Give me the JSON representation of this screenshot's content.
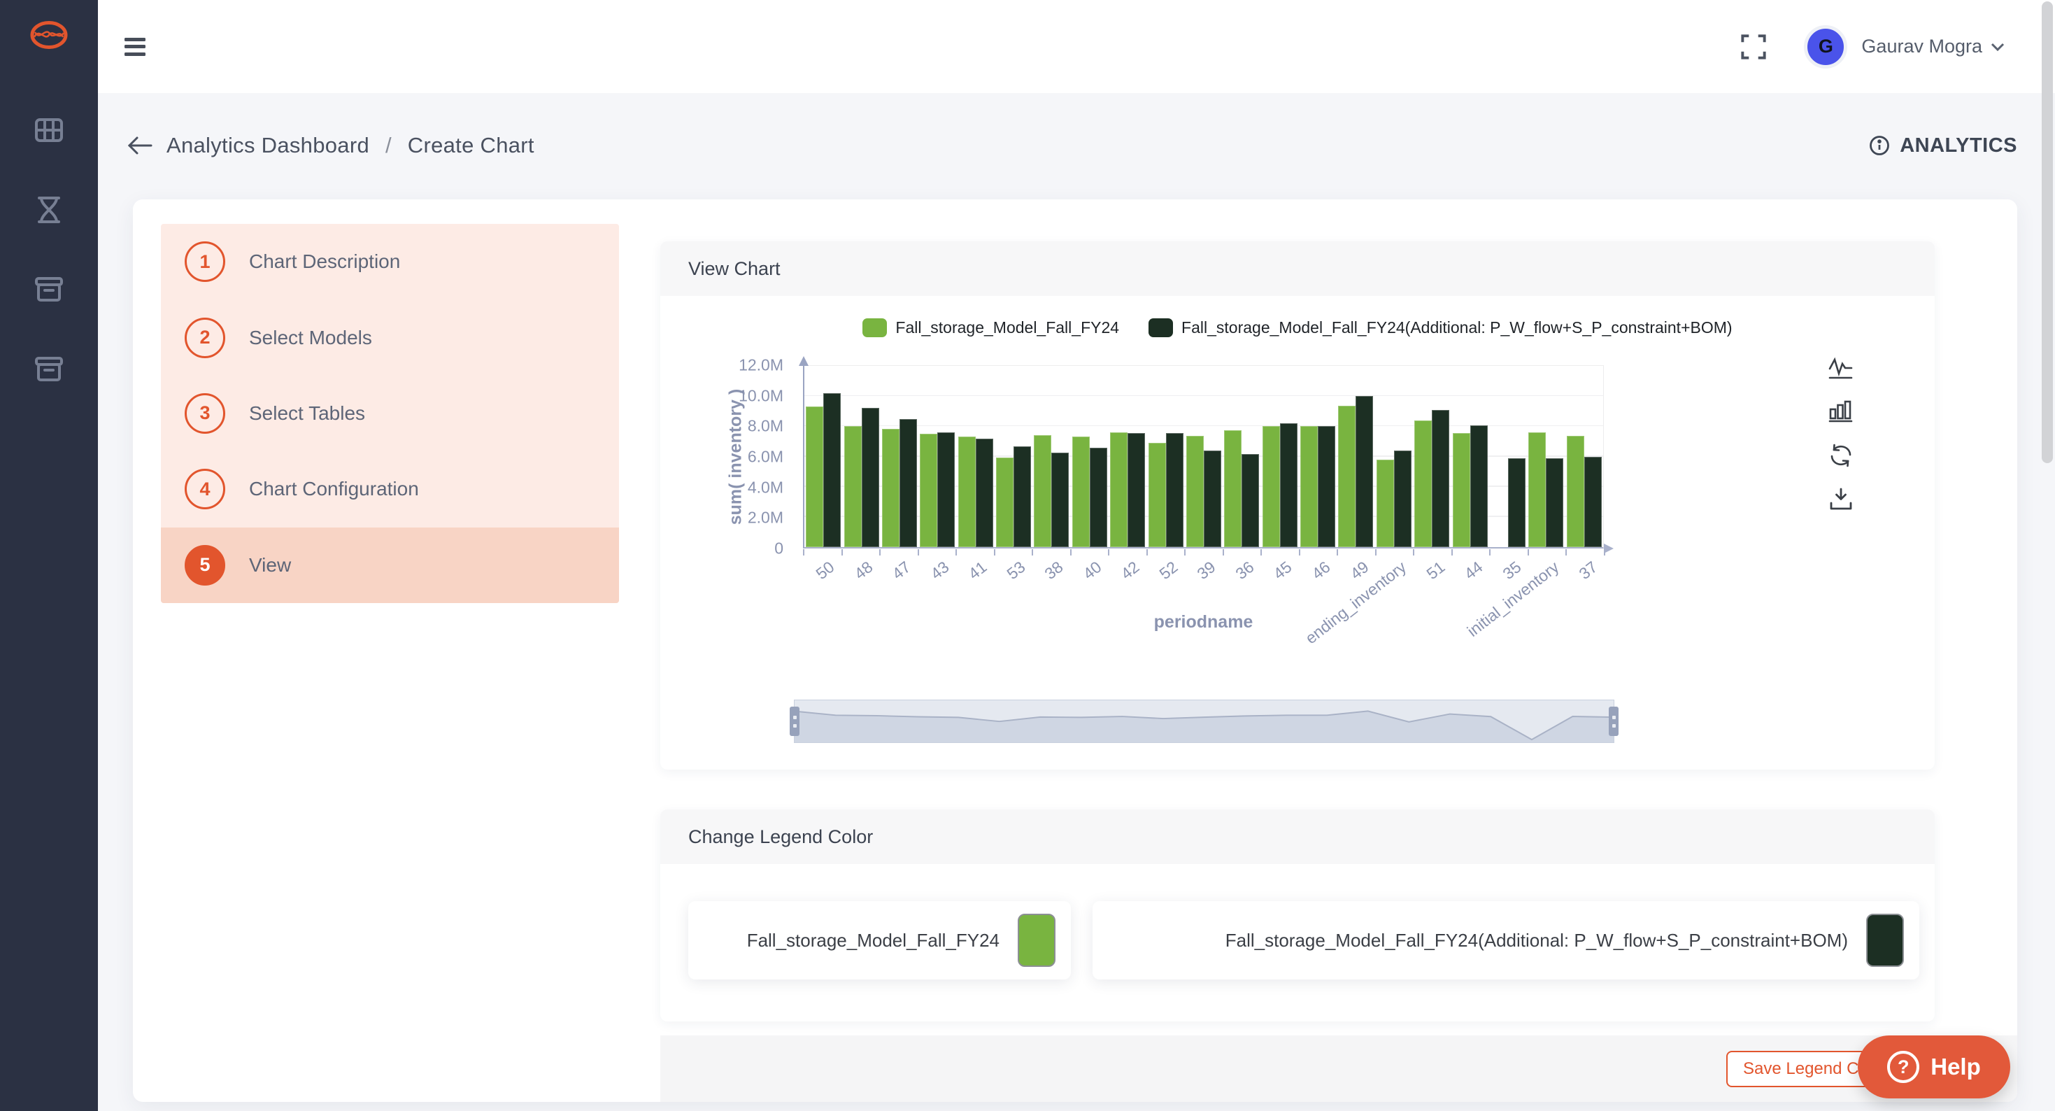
{
  "topbar": {
    "user_name": "Gaurav Mogra",
    "avatar_initial": "G"
  },
  "breadcrumb": {
    "items": [
      "Analytics Dashboard",
      "Create Chart"
    ],
    "separator": "/"
  },
  "header_right": {
    "label": "ANALYTICS"
  },
  "stepper": {
    "steps": [
      {
        "num": "1",
        "label": "Chart Description",
        "active": false
      },
      {
        "num": "2",
        "label": "Select Models",
        "active": false
      },
      {
        "num": "3",
        "label": "Select Tables",
        "active": false
      },
      {
        "num": "4",
        "label": "Chart Configuration",
        "active": false
      },
      {
        "num": "5",
        "label": "View",
        "active": true
      }
    ]
  },
  "panels": {
    "view_chart_title": "View Chart",
    "change_legend_title": "Change Legend Color"
  },
  "chart_data": {
    "type": "bar",
    "title": "",
    "xlabel": "periodname",
    "ylabel": "sum( inventory )",
    "unit": "M",
    "ylim": [
      0,
      12
    ],
    "ytick_values": [
      0,
      2,
      4,
      6,
      8,
      10,
      12
    ],
    "ytick_labels": [
      "0",
      "2.0M",
      "4.0M",
      "6.0M",
      "8.0M",
      "10.0M",
      "12.0M"
    ],
    "grid": true,
    "legend_position": "top",
    "categories": [
      "50",
      "48",
      "47",
      "43",
      "41",
      "53",
      "38",
      "40",
      "42",
      "52",
      "39",
      "36",
      "45",
      "46",
      "49",
      "ending_inventory",
      "51",
      "44",
      "35",
      "initial_inventory",
      "37"
    ],
    "series": [
      {
        "name": "Fall_storage_Model_Fall_FY24",
        "color": "#79b440",
        "values": [
          9.3,
          8.0,
          7.85,
          7.5,
          7.3,
          5.95,
          7.4,
          7.3,
          7.6,
          6.9,
          7.35,
          7.75,
          8.0,
          8.0,
          9.35,
          5.8,
          8.4,
          7.55,
          0,
          7.6,
          7.35
        ]
      },
      {
        "name": "Fall_storage_Model_Fall_FY24(Additional: P_W_flow+S_P_constraint+BOM)",
        "color": "#1c2f23",
        "values": [
          10.2,
          9.2,
          8.5,
          7.6,
          7.2,
          6.65,
          6.25,
          6.6,
          7.55,
          7.55,
          6.4,
          6.15,
          8.2,
          8.0,
          10.0,
          6.4,
          9.1,
          8.05,
          5.9,
          5.9,
          6.0
        ]
      }
    ]
  },
  "legend_editor": {
    "items": [
      {
        "label": "Fall_storage_Model_Fall_FY24",
        "color": "#79b440"
      },
      {
        "label": "Fall_storage_Model_Fall_FY24(Additional: P_W_flow+S_P_constraint+BOM)",
        "color": "#1c2f23"
      }
    ],
    "save_button_label": "Save Legend Colors"
  },
  "help": {
    "label": "Help"
  },
  "colors": {
    "accent": "#e2552d",
    "sidebar_bg": "#2b3143",
    "help_bg": "#e2593a",
    "avatar_bg": "#4a53ea"
  },
  "icons": {
    "sidebar": [
      "app-logo",
      "grid",
      "hourglass",
      "archive-box",
      "archive-box"
    ],
    "topbar": [
      "menu",
      "fullscreen",
      "chevron-down"
    ],
    "breadcrumb": [
      "back-arrow",
      "info"
    ],
    "chart_toolbar": [
      "line-chart",
      "bar-chart",
      "refresh",
      "download"
    ],
    "help": [
      "question-circle"
    ]
  }
}
